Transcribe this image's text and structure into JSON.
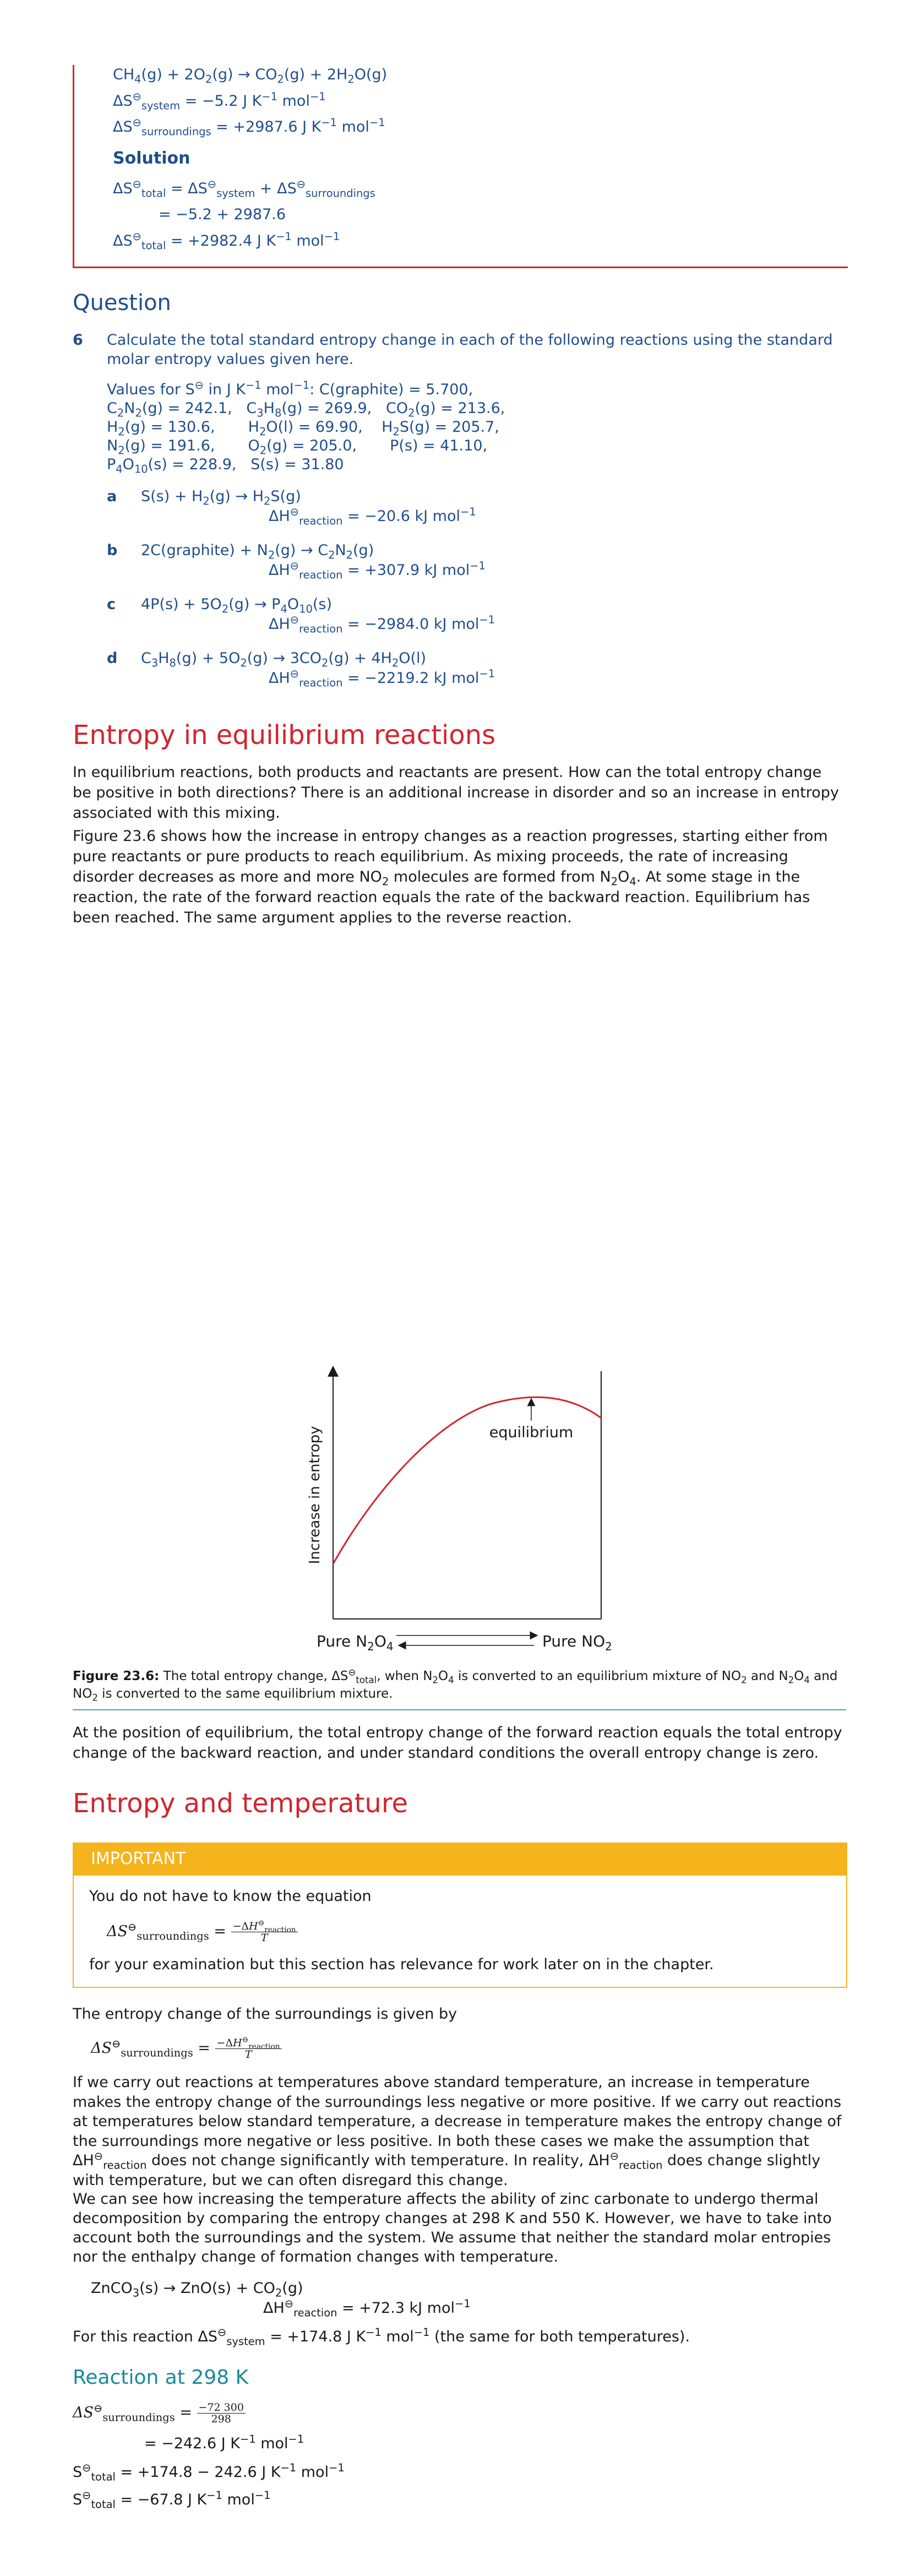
{
  "example": {
    "equation": "CH4(g) + 2O2(g) → CO2(g) + 2H2O(g)",
    "system_label": "ΔS",
    "system_value": " = −5.2 J K−1 mol−1",
    "surroundings_value": " = +2987.6 J K−1 mol−1",
    "solution_label": "Solution",
    "step1": "= ΔS",
    "step2": "= −5.2 + 2987.6",
    "result": " = +2982.4 J K−1 mol−1"
  },
  "question": {
    "heading": "Question",
    "number": "6",
    "text": "Calculate the total standard entropy change in each of the following reactions using the standard molar entropy values given here.",
    "values_intro": "Values for S",
    "values_intro_rest": " in J K−1 mol−1: C(graphite) = 5.700,",
    "parts": [
      {
        "letter": "a",
        "equation": "S(s) + H2(g) → H2S(g)",
        "enthalpy": "= −20.6 kJ mol−1"
      },
      {
        "letter": "b",
        "equation": "2C(graphite) + N2(g) → C2N2(g)",
        "enthalpy": "= +307.9 kJ mol−1"
      },
      {
        "letter": "c",
        "equation": "4P(s) + 5O2(g) → P4O10(s)",
        "enthalpy": "= −2984.0 kJ mol−1"
      },
      {
        "letter": "d",
        "equation": "C3H8(g) + 5O2(g) → 3CO2(g) + 4H2O(l)",
        "enthalpy": "= −2219.2 kJ mol−1"
      }
    ]
  },
  "equilibrium_section": {
    "heading": "Entropy in equilibrium reactions",
    "para1": "In equilibrium reactions, both products and reactants are present. How can the total entropy change be positive in both directions? There is an additional increase in disorder and so an increase in entropy associated with this mixing.",
    "para2_start": "Figure 23.6 shows how the increase in entropy changes as a reaction progresses, starting either from pure reactants or pure products to reach equilibrium. As mixing proceeds, the rate of increasing disorder decreases as more and more NO",
    "para2_mid": " molecules are formed from N",
    "para2_end": ". At some stage in the reaction, the rate of the forward reaction equals the rate of the backward reaction. Equilibrium has been reached. The same argument applies to the reverse reaction.",
    "figure": {
      "y_label": "Increase in entropy",
      "annotation": "equilibrium",
      "x_left": "Pure N2O4",
      "x_right": "Pure NO2"
    },
    "caption_label": "Figure 23.6:",
    "caption_text": " The total entropy change, ΔS",
    "caption_rest": ", when N2O4 is converted to an equilibrium mixture of NO2 and N2O4 and NO2 is converted to the same equilibrium mixture.",
    "para3": "At the position of equilibrium, the total entropy change of the forward reaction equals the total entropy change of the backward reaction, and under standard conditions the overall entropy change is zero."
  },
  "temperature_section": {
    "heading": "Entropy and temperature",
    "important_title": "IMPORTANT",
    "important_line1": "You do not have to know the equation",
    "important_line2": "for your examination but this section has relevance for work later on in the chapter.",
    "para1": "The entropy change of the surroundings is given by",
    "para2": "If we carry out reactions at temperatures above standard temperature, an increase in temperature makes the entropy change of the surroundings less negative or more positive. If we carry out reactions at temperatures below standard temperature, a decrease in temperature makes the entropy change of the surroundings more negative or less positive. In both these cases we make the assumption that ΔH",
    "para2_b": " does not change significantly with temperature. In reality, ΔH",
    "para2_c": " does change slightly with temperature, but we can often disregard this change.",
    "para3": "We can see how increasing the temperature affects the ability of zinc carbonate to undergo thermal decomposition by comparing the entropy changes at 298 K and 550 K. However, we have to take into account both the surroundings and the system. We assume that neither the standard molar entropies nor the enthalpy change of formation changes with temperature.",
    "reaction": "ZnCO3(s) → ZnO(s) + CO2(g)",
    "reaction_enthalpy": "= +72.3 kJ mol−1",
    "system_note_start": "For this reaction ΔS",
    "system_note_end": " = +174.8 J K−1 mol−1 (the same for both temperatures).",
    "subheading": "Reaction at 298 K",
    "calc_frac_num": "−72 300",
    "calc_frac_den": "298",
    "calc_line2": "= −242.6 J K−1 mol−1",
    "calc_line3": " = +174.8 − 242.6 J K−1 mol−1",
    "calc_line4": " = −67.8 J K−1 mol−1"
  }
}
